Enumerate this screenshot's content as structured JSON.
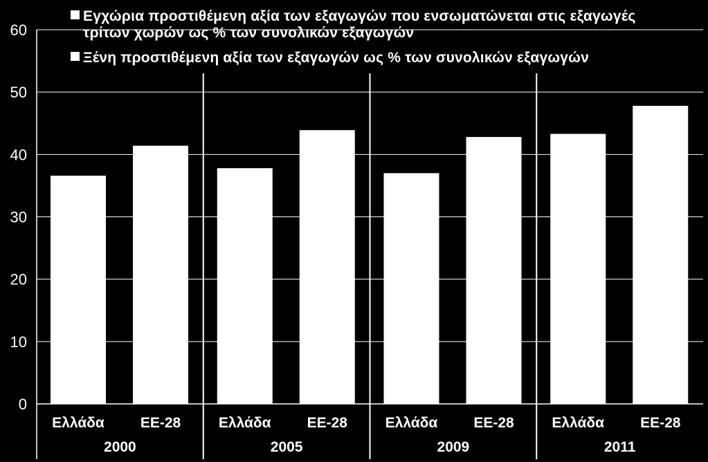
{
  "chart_data": {
    "type": "bar",
    "title": "",
    "xlabel": "",
    "ylabel": "",
    "ylim": [
      0,
      60
    ],
    "yticks": [
      0,
      10,
      20,
      30,
      40,
      50,
      60
    ],
    "grid": true,
    "legend_position": "top",
    "groups": [
      {
        "label": "2000",
        "categories": [
          "Ελλάδα",
          "ΕΕ-28"
        ],
        "values": [
          36.6,
          41.4
        ]
      },
      {
        "label": "2005",
        "categories": [
          "Ελλάδα",
          "ΕΕ-28"
        ],
        "values": [
          37.8,
          43.9
        ]
      },
      {
        "label": "2009",
        "categories": [
          "Ελλάδα",
          "ΕΕ-28"
        ],
        "values": [
          37.0,
          42.8
        ]
      },
      {
        "label": "2011",
        "categories": [
          "Ελλάδα",
          "ΕΕ-28"
        ],
        "values": [
          43.3,
          47.8
        ]
      }
    ],
    "legend": [
      {
        "lines": [
          "Εγχώρια προστιθέμενη αξία των εξαγωγών που ενσωματώνεται στις εξαγωγές",
          "τρίτων χωρών ως % των συνολικών εξαγωγών"
        ]
      },
      {
        "lines": [
          "Ξένη προστιθέμενη αξία των εξαγωγών ως % των συνολικών εξαγωγών"
        ]
      }
    ],
    "colors": {
      "background": "#000000",
      "bars": "#ffffff",
      "text": "#ffffff",
      "gridlines": "#ffffff",
      "axis": "#ffffff"
    }
  }
}
